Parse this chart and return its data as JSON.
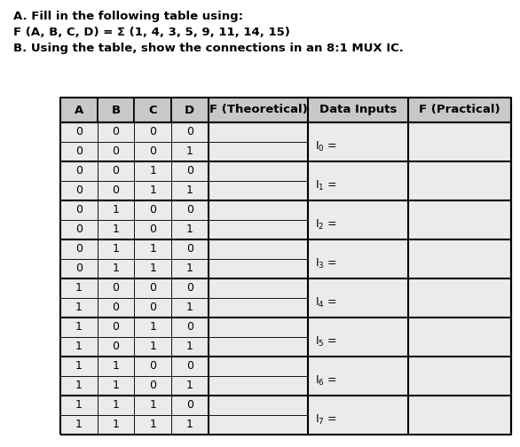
{
  "title_a": "A. Fill in the following table using:",
  "title_f": "F (A, B, C, D) = Σ (1, 4, 3, 5, 9, 11, 14, 15)",
  "title_b": "B. Using the table, show the connections in an 8:1 MUX IC.",
  "headers": [
    "A",
    "B",
    "C",
    "D",
    "F (Theoretical)",
    "Data Inputs",
    "F (Practical)"
  ],
  "abcd_rows": [
    [
      0,
      0,
      0,
      0
    ],
    [
      0,
      0,
      0,
      1
    ],
    [
      0,
      0,
      1,
      0
    ],
    [
      0,
      0,
      1,
      1
    ],
    [
      0,
      1,
      0,
      0
    ],
    [
      0,
      1,
      0,
      1
    ],
    [
      0,
      1,
      1,
      0
    ],
    [
      0,
      1,
      1,
      1
    ],
    [
      1,
      0,
      0,
      0
    ],
    [
      1,
      0,
      0,
      1
    ],
    [
      1,
      0,
      1,
      0
    ],
    [
      1,
      0,
      1,
      1
    ],
    [
      1,
      1,
      0,
      0
    ],
    [
      1,
      1,
      0,
      1
    ],
    [
      1,
      1,
      1,
      0
    ],
    [
      1,
      1,
      1,
      1
    ]
  ],
  "data_input_labels": [
    "I$_0$ =",
    "I$_1$ =",
    "I$_2$ =",
    "I$_3$ =",
    "I$_4$ =",
    "I$_5$ =",
    "I$_6$ =",
    "I$_7$ ="
  ],
  "header_bg": "#c8c8c8",
  "cell_bg": "#ebebeb",
  "border_color": "#000000",
  "text_color": "#000000",
  "figsize": [
    5.86,
    5.04
  ],
  "dpi": 100
}
